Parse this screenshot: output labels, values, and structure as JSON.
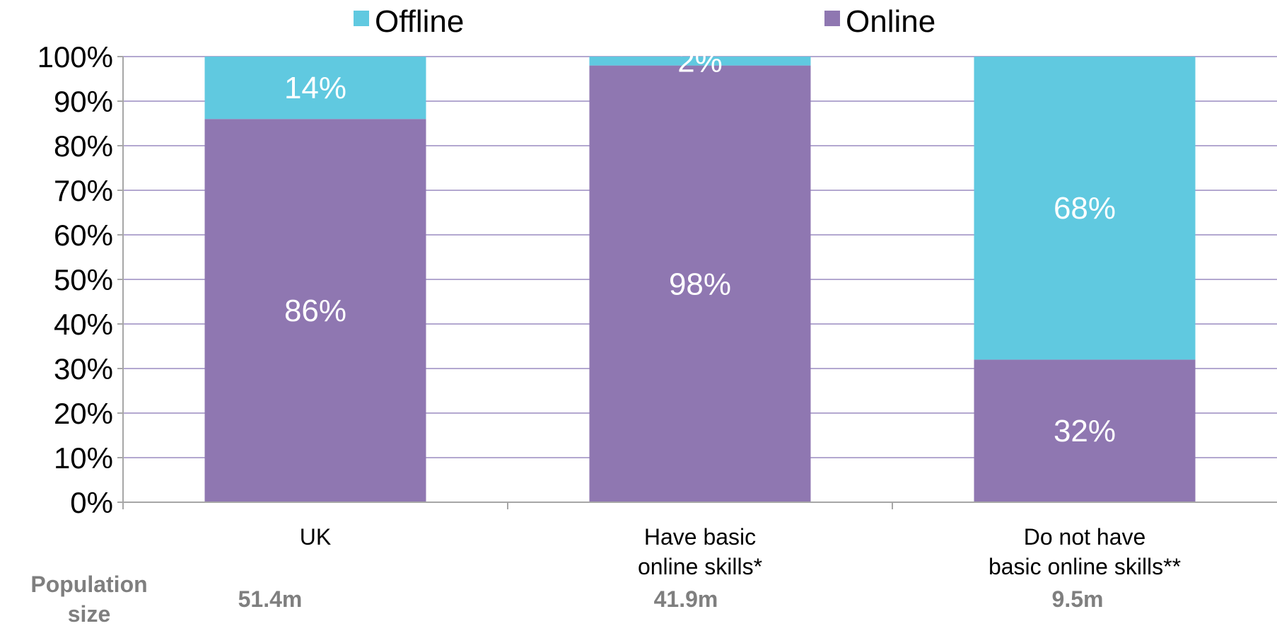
{
  "chart_data": {
    "type": "bar",
    "stacked": true,
    "categories": [
      [
        "UK"
      ],
      [
        "Have basic",
        "online skills*"
      ],
      [
        "Do not have",
        "basic online skills**"
      ]
    ],
    "series": [
      {
        "name": "Online",
        "values": [
          86,
          98,
          32
        ],
        "color": "#8f77b1"
      },
      {
        "name": "Offline",
        "values": [
          14,
          2,
          68
        ],
        "color": "#60c9e0"
      }
    ],
    "data_labels": {
      "Online": [
        "86%",
        "98%",
        "32%"
      ],
      "Offline": [
        "14%",
        "2%",
        "68%"
      ]
    },
    "legend": {
      "placement": "top",
      "order": [
        "Offline",
        "Online"
      ]
    },
    "yaxis": {
      "ylim": [
        0,
        100
      ],
      "ticks": [
        "0%",
        "10%",
        "20%",
        "30%",
        "40%",
        "50%",
        "60%",
        "70%",
        "80%",
        "90%",
        "100%"
      ],
      "grid": true,
      "grid_color": "#b3a8d0"
    },
    "population": {
      "label_lines": [
        "Population",
        "size"
      ],
      "values": [
        "51.4m",
        "41.9m",
        "9.5m"
      ]
    }
  }
}
